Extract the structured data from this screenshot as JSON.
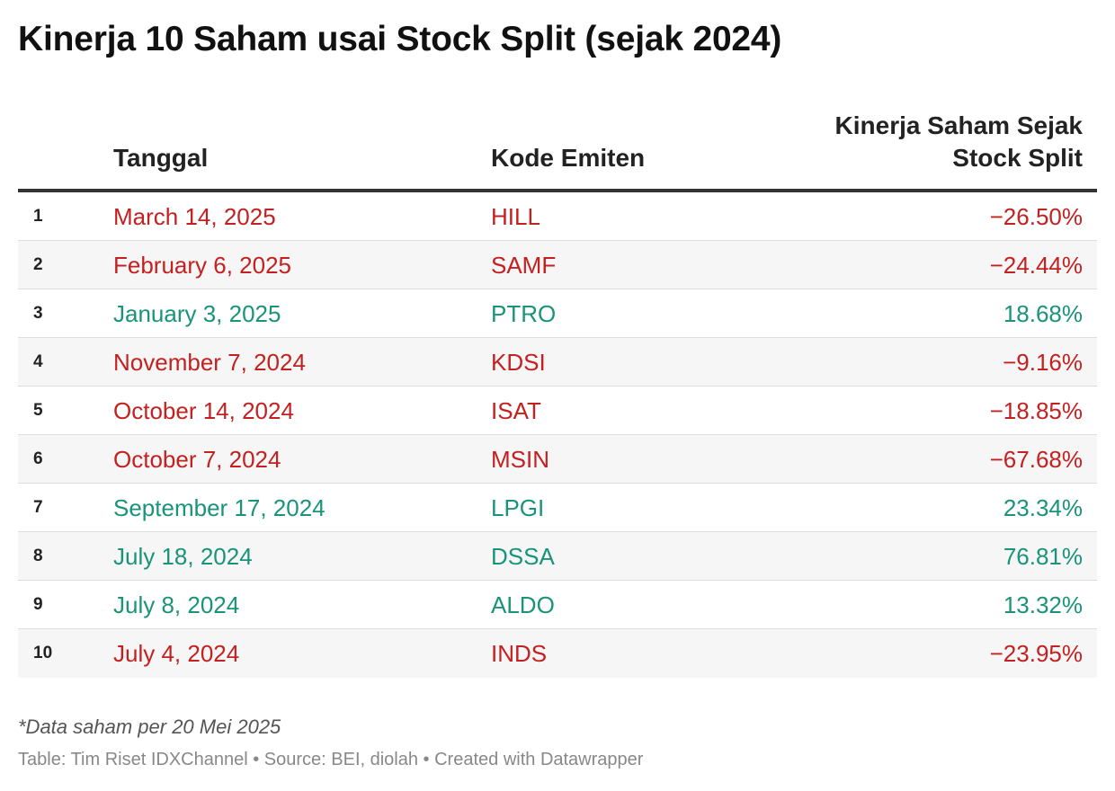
{
  "title": "Kinerja 10 Saham usai Stock Split (sejak 2024)",
  "colors": {
    "negative": "#c42020",
    "positive": "#19937a"
  },
  "chart_data": {
    "type": "table",
    "title": "Kinerja 10 Saham usai Stock Split (sejak 2024)",
    "columns": [
      "",
      "Tanggal",
      "Kode Emiten",
      "Kinerja Saham Sejak Stock Split"
    ],
    "rows": [
      {
        "rank": "1",
        "date": "March 14, 2025",
        "code": "HILL",
        "performance": "−26.50%",
        "value": -26.5
      },
      {
        "rank": "2",
        "date": "February 6, 2025",
        "code": "SAMF",
        "performance": "−24.44%",
        "value": -24.44
      },
      {
        "rank": "3",
        "date": "January 3, 2025",
        "code": "PTRO",
        "performance": "18.68%",
        "value": 18.68
      },
      {
        "rank": "4",
        "date": "November 7, 2024",
        "code": "KDSI",
        "performance": "−9.16%",
        "value": -9.16
      },
      {
        "rank": "5",
        "date": "October 14, 2024",
        "code": "ISAT",
        "performance": "−18.85%",
        "value": -18.85
      },
      {
        "rank": "6",
        "date": "October 7, 2024",
        "code": "MSIN",
        "performance": "−67.68%",
        "value": -67.68
      },
      {
        "rank": "7",
        "date": "September 17, 2024",
        "code": "LPGI",
        "performance": "23.34%",
        "value": 23.34
      },
      {
        "rank": "8",
        "date": "July 18, 2024",
        "code": "DSSA",
        "performance": "76.81%",
        "value": 76.81
      },
      {
        "rank": "9",
        "date": "July 8, 2024",
        "code": "ALDO",
        "performance": "13.32%",
        "value": 13.32
      },
      {
        "rank": "10",
        "date": "July 4, 2024",
        "code": "INDS",
        "performance": "−23.95%",
        "value": -23.95
      }
    ]
  },
  "header": {
    "date_label": "Tanggal",
    "code_label": "Kode Emiten",
    "perf_label_line1": "Kinerja Saham Sejak",
    "perf_label_line2": "Stock Split"
  },
  "note": "*Data saham per 20 Mei 2025",
  "footer": "Table: Tim Riset IDXChannel • Source: BEI, diolah • Created with Datawrapper"
}
